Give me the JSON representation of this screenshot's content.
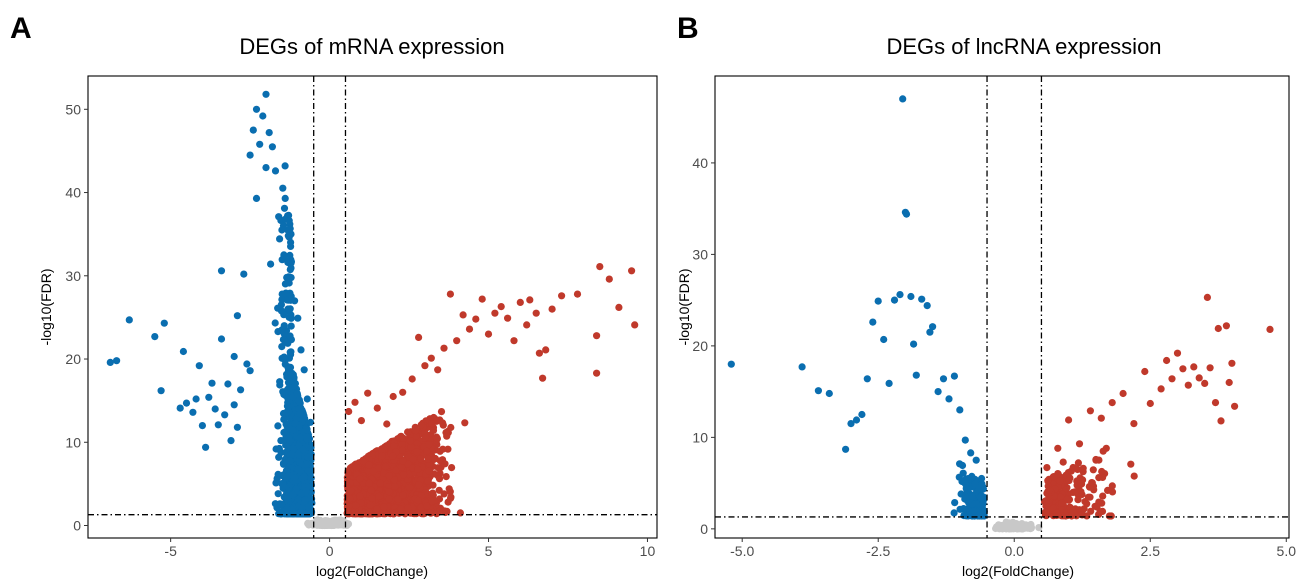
{
  "chart_data": [
    {
      "panel_label": "A",
      "type": "scatter",
      "title": "DEGs of mRNA expression",
      "xlabel": "log2(FoldChange)",
      "ylabel": "-log10(FDR)",
      "xlim": [
        -7.6,
        10.3
      ],
      "ylim": [
        -1.5,
        54
      ],
      "xticks": [
        -5,
        0,
        5,
        10
      ],
      "yticks": [
        0,
        10,
        20,
        30,
        40,
        50
      ],
      "xtick_labels": [
        "-5",
        "0",
        "5",
        "10"
      ],
      "ytick_labels": [
        "0",
        "10",
        "20",
        "30",
        "40",
        "50"
      ],
      "grid": false,
      "legend": "none",
      "thresholds": {
        "x": [
          -0.5,
          0.5
        ],
        "y": 1.3
      },
      "colors": {
        "down": "#0a6eb0",
        "up": "#c0392b",
        "ns": "#c8c8c8"
      },
      "series": [
        {
          "group": "down",
          "points": [
            [
              -6.9,
              19.6
            ],
            [
              -6.7,
              19.8
            ],
            [
              -6.3,
              24.7
            ],
            [
              -5.5,
              22.7
            ],
            [
              -5.2,
              24.3
            ],
            [
              -5.3,
              16.2
            ],
            [
              -4.7,
              14.1
            ],
            [
              -4.6,
              20.9
            ],
            [
              -4.5,
              14.7
            ],
            [
              -4.3,
              13.6
            ],
            [
              -4.2,
              15.2
            ],
            [
              -4.1,
              19.2
            ],
            [
              -4.0,
              12.0
            ],
            [
              -3.9,
              9.4
            ],
            [
              -3.8,
              15.4
            ],
            [
              -3.7,
              17.1
            ],
            [
              -3.6,
              14.0
            ],
            [
              -3.5,
              12.1
            ],
            [
              -3.4,
              22.4
            ],
            [
              -3.4,
              30.6
            ],
            [
              -3.3,
              13.3
            ],
            [
              -3.2,
              17.0
            ],
            [
              -3.1,
              10.2
            ],
            [
              -3.0,
              14.5
            ],
            [
              -3.0,
              20.3
            ],
            [
              -2.9,
              25.2
            ],
            [
              -2.9,
              11.8
            ],
            [
              -2.8,
              16.3
            ],
            [
              -2.7,
              30.2
            ],
            [
              -2.6,
              19.4
            ],
            [
              -2.5,
              18.6
            ],
            [
              -2.5,
              44.5
            ],
            [
              -2.4,
              47.5
            ],
            [
              -2.3,
              50.0
            ],
            [
              -2.3,
              39.3
            ],
            [
              -2.2,
              45.8
            ],
            [
              -2.1,
              49.2
            ],
            [
              -2.0,
              51.8
            ],
            [
              -2.0,
              43.0
            ],
            [
              -1.9,
              47.2
            ],
            [
              -1.8,
              45.5
            ],
            [
              -1.7,
              42.6
            ],
            [
              -1.6,
              37.1
            ],
            [
              -1.5,
              35.5
            ],
            [
              -1.4,
              43.2
            ],
            [
              -1.3,
              34.8
            ],
            [
              -1.2,
              31.7
            ],
            [
              -1.1,
              27.0
            ],
            [
              -1.0,
              24.9
            ],
            [
              -0.9,
              21.1
            ],
            [
              -0.8,
              18.7
            ],
            [
              -0.7,
              15.2
            ],
            [
              -0.6,
              12.4
            ]
          ]
        },
        {
          "group": "up",
          "points": [
            [
              0.6,
              13.7
            ],
            [
              0.8,
              14.8
            ],
            [
              1.0,
              12.6
            ],
            [
              1.2,
              15.9
            ],
            [
              1.5,
              14.1
            ],
            [
              1.8,
              12.2
            ],
            [
              2.0,
              15.5
            ],
            [
              2.3,
              16.0
            ],
            [
              2.6,
              17.6
            ],
            [
              2.8,
              22.6
            ],
            [
              3.0,
              19.2
            ],
            [
              3.2,
              20.1
            ],
            [
              3.4,
              18.7
            ],
            [
              3.6,
              21.3
            ],
            [
              3.8,
              27.8
            ],
            [
              4.0,
              22.2
            ],
            [
              4.2,
              25.3
            ],
            [
              4.4,
              23.6
            ],
            [
              4.6,
              24.8
            ],
            [
              4.8,
              27.2
            ],
            [
              5.0,
              23.0
            ],
            [
              5.2,
              25.5
            ],
            [
              5.4,
              26.3
            ],
            [
              5.6,
              24.9
            ],
            [
              5.8,
              22.2
            ],
            [
              6.0,
              26.8
            ],
            [
              6.2,
              24.1
            ],
            [
              6.3,
              27.1
            ],
            [
              6.5,
              25.5
            ],
            [
              6.6,
              20.7
            ],
            [
              6.7,
              17.7
            ],
            [
              6.8,
              21.1
            ],
            [
              7.0,
              26.0
            ],
            [
              7.3,
              27.6
            ],
            [
              7.8,
              27.8
            ],
            [
              8.4,
              22.8
            ],
            [
              8.4,
              18.3
            ],
            [
              8.5,
              31.1
            ],
            [
              8.8,
              29.6
            ],
            [
              9.1,
              26.2
            ],
            [
              9.5,
              30.6
            ],
            [
              9.6,
              24.1
            ]
          ]
        }
      ]
    },
    {
      "panel_label": "B",
      "type": "scatter",
      "title": "DEGs of lncRNA expression",
      "xlabel": "log2(FoldChange)",
      "ylabel": "-log10(FDR)",
      "xlim": [
        -5.5,
        5.05
      ],
      "ylim": [
        -1.0,
        49.5
      ],
      "xticks": [
        -5.0,
        -2.5,
        0.0,
        2.5,
        5.0
      ],
      "yticks": [
        0,
        10,
        20,
        30,
        40
      ],
      "xtick_labels": [
        "-5.0",
        "-2.5",
        "0.0",
        "2.5",
        "5.0"
      ],
      "ytick_labels": [
        "0",
        "10",
        "20",
        "30",
        "40"
      ],
      "grid": false,
      "legend": "none",
      "thresholds": {
        "x": [
          -0.5,
          0.5
        ],
        "y": 1.3
      },
      "colors": {
        "down": "#0a6eb0",
        "up": "#c0392b",
        "ns": "#c8c8c8"
      },
      "series": [
        {
          "group": "down",
          "points": [
            [
              -5.2,
              18.0
            ],
            [
              -3.9,
              17.7
            ],
            [
              -3.6,
              15.1
            ],
            [
              -3.4,
              14.8
            ],
            [
              -3.1,
              8.7
            ],
            [
              -3.0,
              11.5
            ],
            [
              -2.9,
              11.9
            ],
            [
              -2.8,
              12.5
            ],
            [
              -2.7,
              16.4
            ],
            [
              -2.6,
              22.6
            ],
            [
              -2.5,
              24.9
            ],
            [
              -2.4,
              20.7
            ],
            [
              -2.3,
              15.9
            ],
            [
              -2.2,
              25.0
            ],
            [
              -2.1,
              25.6
            ],
            [
              -2.05,
              47.0
            ],
            [
              -2.0,
              34.6
            ],
            [
              -1.98,
              34.4
            ],
            [
              -1.9,
              25.4
            ],
            [
              -1.85,
              20.2
            ],
            [
              -1.8,
              16.8
            ],
            [
              -1.7,
              25.1
            ],
            [
              -1.6,
              24.4
            ],
            [
              -1.55,
              21.5
            ],
            [
              -1.5,
              22.1
            ],
            [
              -1.4,
              15.0
            ],
            [
              -1.3,
              16.4
            ],
            [
              -1.2,
              14.2
            ],
            [
              -1.1,
              16.7
            ],
            [
              -1.0,
              13.0
            ],
            [
              -0.9,
              9.7
            ],
            [
              -0.8,
              8.3
            ],
            [
              -0.7,
              7.5
            ],
            [
              -0.6,
              5.5
            ]
          ]
        },
        {
          "group": "up",
          "points": [
            [
              0.6,
              6.7
            ],
            [
              0.8,
              8.8
            ],
            [
              0.9,
              7.3
            ],
            [
              1.0,
              11.9
            ],
            [
              1.2,
              9.3
            ],
            [
              1.4,
              12.9
            ],
            [
              1.6,
              12.1
            ],
            [
              1.8,
              13.8
            ],
            [
              2.0,
              14.8
            ],
            [
              2.2,
              11.5
            ],
            [
              2.4,
              17.2
            ],
            [
              2.5,
              13.7
            ],
            [
              2.7,
              15.3
            ],
            [
              2.8,
              18.4
            ],
            [
              2.9,
              16.4
            ],
            [
              3.0,
              19.2
            ],
            [
              3.1,
              17.5
            ],
            [
              3.2,
              15.7
            ],
            [
              3.3,
              17.7
            ],
            [
              3.4,
              16.5
            ],
            [
              3.5,
              15.9
            ],
            [
              3.55,
              25.3
            ],
            [
              3.6,
              17.6
            ],
            [
              3.7,
              13.8
            ],
            [
              3.75,
              21.9
            ],
            [
              3.8,
              11.8
            ],
            [
              3.9,
              22.2
            ],
            [
              3.95,
              16.0
            ],
            [
              4.0,
              18.1
            ],
            [
              4.05,
              13.4
            ],
            [
              4.7,
              21.8
            ]
          ]
        }
      ]
    }
  ]
}
